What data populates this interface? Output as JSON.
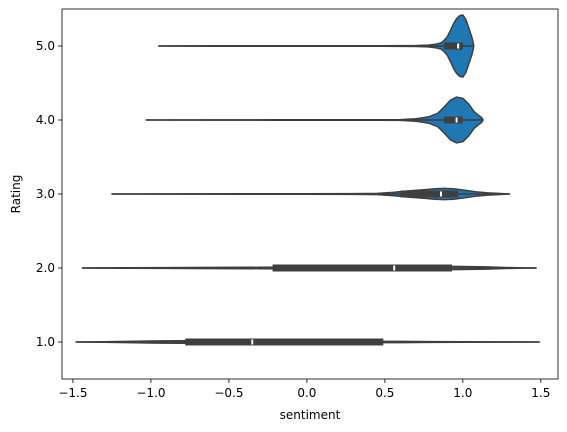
{
  "chart_data": {
    "type": "violin",
    "orientation": "horizontal",
    "xlabel": "sentiment",
    "ylabel": "Rating",
    "xlim": [
      -1.57,
      1.61
    ],
    "x_ticks": [
      -1.5,
      -1.0,
      -0.5,
      0.0,
      0.5,
      1.0,
      1.5
    ],
    "x_tick_labels": [
      "−1.5",
      "−1.0",
      "−0.5",
      "0.0",
      "0.5",
      "1.0",
      "1.5"
    ],
    "categories": [
      "5.0",
      "4.0",
      "3.0",
      "2.0",
      "1.0"
    ],
    "fill_color": "#1f77b4",
    "edge_color": "#3f3f3f",
    "grid": false,
    "violins": [
      {
        "category": "5.0",
        "min": -0.95,
        "q1": 0.88,
        "median": 0.97,
        "q3": 1.0,
        "max": 1.07,
        "density_x": [
          -0.95,
          -0.6,
          -0.2,
          0.2,
          0.5,
          0.7,
          0.78,
          0.83,
          0.86,
          0.88,
          0.9,
          0.92,
          0.94,
          0.96,
          0.98,
          1.0,
          1.02,
          1.04,
          1.06,
          1.07
        ],
        "density": [
          0.0,
          0.005,
          0.005,
          0.006,
          0.008,
          0.015,
          0.03,
          0.06,
          0.1,
          0.18,
          0.3,
          0.5,
          0.72,
          0.88,
          0.98,
          1.0,
          0.85,
          0.55,
          0.25,
          0.0
        ]
      },
      {
        "category": "4.0",
        "min": -1.03,
        "q1": 0.88,
        "median": 0.96,
        "q3": 1.0,
        "max": 1.13,
        "density_x": [
          -1.03,
          -0.6,
          -0.2,
          0.2,
          0.45,
          0.6,
          0.7,
          0.78,
          0.84,
          0.88,
          0.92,
          0.96,
          1.0,
          1.04,
          1.07,
          1.1,
          1.12,
          1.13
        ],
        "density": [
          0.0,
          0.004,
          0.005,
          0.006,
          0.008,
          0.014,
          0.04,
          0.1,
          0.22,
          0.42,
          0.64,
          0.74,
          0.7,
          0.5,
          0.28,
          0.15,
          0.08,
          0.0
        ]
      },
      {
        "category": "3.0",
        "min": -1.25,
        "q1": 0.6,
        "median": 0.86,
        "q3": 0.97,
        "max": 1.3,
        "density_x": [
          -1.25,
          -0.8,
          -0.4,
          0.0,
          0.3,
          0.45,
          0.55,
          0.65,
          0.75,
          0.82,
          0.88,
          0.94,
          1.0,
          1.08,
          1.16,
          1.24,
          1.3
        ],
        "density": [
          0.0,
          0.004,
          0.005,
          0.008,
          0.012,
          0.02,
          0.05,
          0.1,
          0.14,
          0.17,
          0.18,
          0.17,
          0.13,
          0.07,
          0.035,
          0.015,
          0.0
        ]
      },
      {
        "category": "2.0",
        "min": -1.44,
        "q1": -0.22,
        "median": 0.56,
        "q3": 0.93,
        "max": 1.47,
        "density_x": [
          -1.44,
          -1.2,
          -0.9,
          -0.6,
          -0.3,
          0.0,
          0.3,
          0.6,
          0.8,
          0.95,
          1.05,
          1.15,
          1.25,
          1.35,
          1.47
        ],
        "density": [
          0.0,
          0.006,
          0.012,
          0.018,
          0.024,
          0.03,
          0.036,
          0.042,
          0.048,
          0.05,
          0.046,
          0.034,
          0.02,
          0.008,
          0.0
        ]
      },
      {
        "category": "1.0",
        "min": -1.48,
        "q1": -0.78,
        "median": -0.35,
        "q3": 0.49,
        "max": 1.49,
        "density_x": [
          -1.48,
          -1.3,
          -1.1,
          -0.95,
          -0.8,
          -0.6,
          -0.35,
          -0.1,
          0.15,
          0.4,
          0.6,
          0.8,
          1.0,
          1.2,
          1.49
        ],
        "density": [
          0.0,
          0.01,
          0.024,
          0.034,
          0.038,
          0.036,
          0.032,
          0.03,
          0.028,
          0.024,
          0.018,
          0.012,
          0.007,
          0.003,
          0.0
        ]
      }
    ]
  }
}
